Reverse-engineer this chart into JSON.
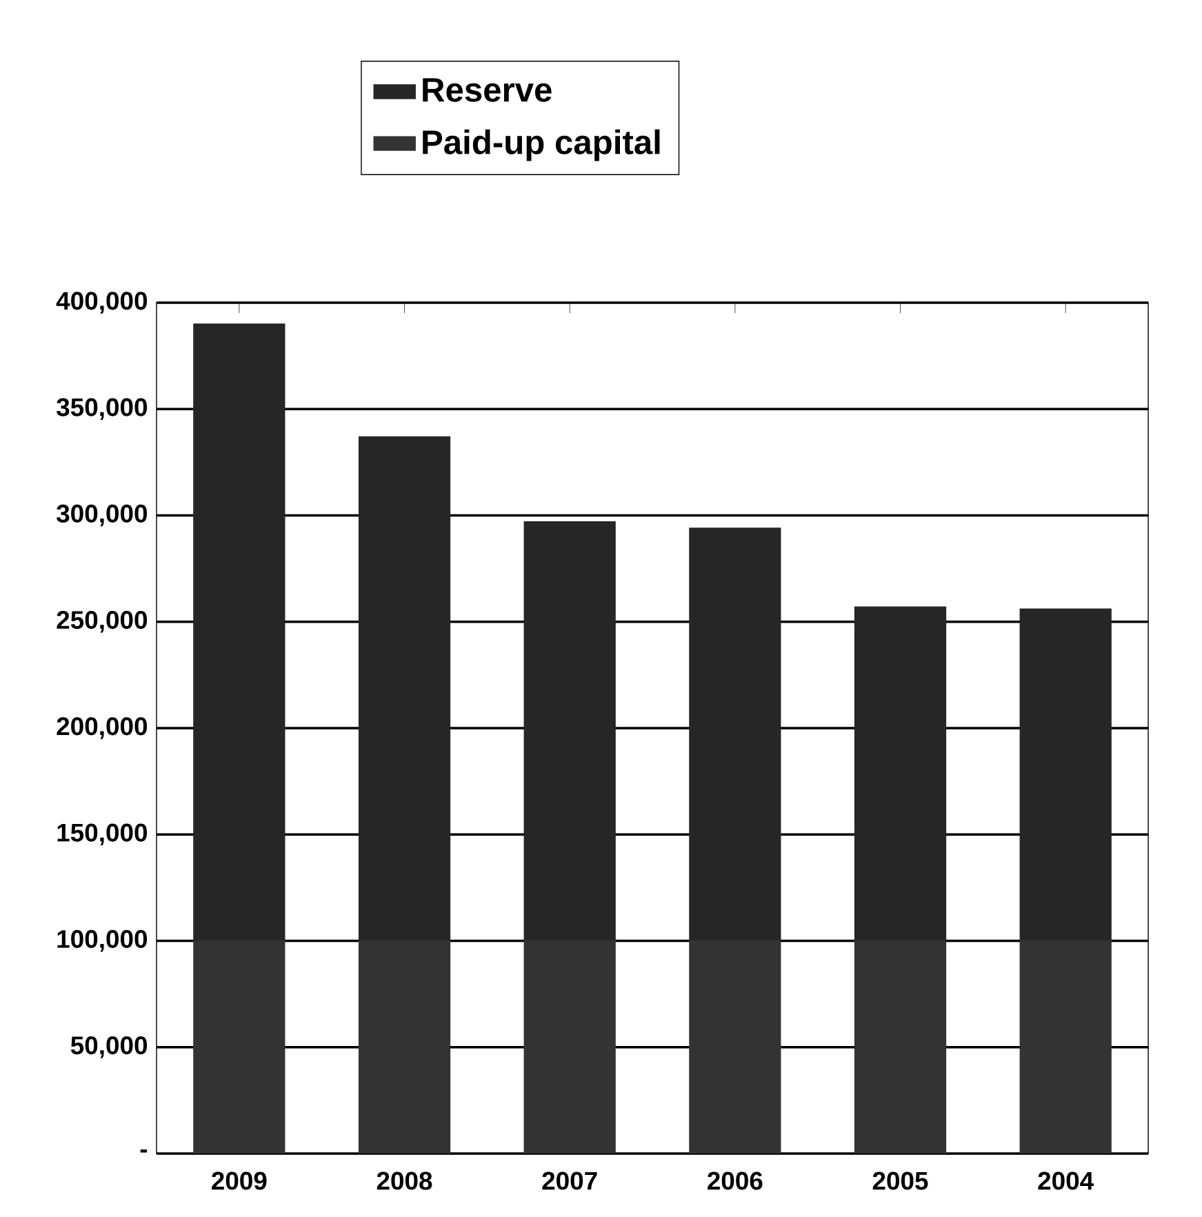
{
  "chart_data": {
    "type": "bar",
    "stacked": true,
    "categories": [
      "2009",
      "2008",
      "2007",
      "2006",
      "2005",
      "2004"
    ],
    "series": [
      {
        "name": "Paid-up capital",
        "color": "#333333",
        "values": [
          100000,
          100000,
          100000,
          100000,
          100000,
          100000
        ]
      },
      {
        "name": "Reserve",
        "color": "#262626",
        "values": [
          290000,
          237000,
          197000,
          194000,
          157000,
          156000
        ]
      }
    ],
    "ylim": [
      0,
      400000
    ],
    "yticks": [
      {
        "value": 0,
        "label": "-"
      },
      {
        "value": 50000,
        "label": "50,000"
      },
      {
        "value": 100000,
        "label": "100,000"
      },
      {
        "value": 150000,
        "label": "150,000"
      },
      {
        "value": 200000,
        "label": "200,000"
      },
      {
        "value": 250000,
        "label": "250,000"
      },
      {
        "value": 300000,
        "label": "300,000"
      },
      {
        "value": 350000,
        "label": "350,000"
      },
      {
        "value": 400000,
        "label": "400,000"
      }
    ],
    "grid": "y",
    "legend": "top"
  }
}
